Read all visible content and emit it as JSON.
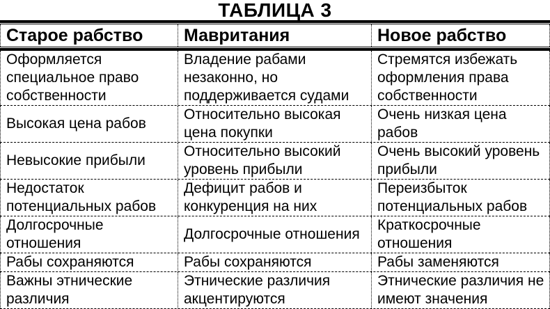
{
  "title": "ТАБЛИЦА 3",
  "colors": {
    "text": "#000000",
    "background": "#ffffff",
    "border": "#000000"
  },
  "table": {
    "headers": [
      "Старое рабство",
      "Мавритания",
      "Новое рабство"
    ],
    "rows": [
      [
        "Оформляется специальное право собственности",
        "Владение рабами незаконно, но поддерживается судами",
        "Стремятся избежать оформления права собственности"
      ],
      [
        "Высокая цена рабов",
        "Относительно высокая цена покупки",
        "Очень низкая цена рабов"
      ],
      [
        "Невысокие прибыли",
        "Относительно высокий уровень прибыли",
        "Очень высокий уровень прибыли"
      ],
      [
        "Недостаток потенциальных рабов",
        "Дефицит рабов и конкуренция на них",
        "Переизбыток потенциальных рабов"
      ],
      [
        "Долгосрочные отношения",
        "Долгосрочные отношения",
        "Краткосрочные отношения"
      ],
      [
        "Рабы сохраняются",
        "Рабы сохраняются",
        "Рабы заменяются"
      ],
      [
        "Важны этнические различия",
        "Этнические различия акцентируются",
        "Этнические различия не имеют значения"
      ]
    ]
  }
}
